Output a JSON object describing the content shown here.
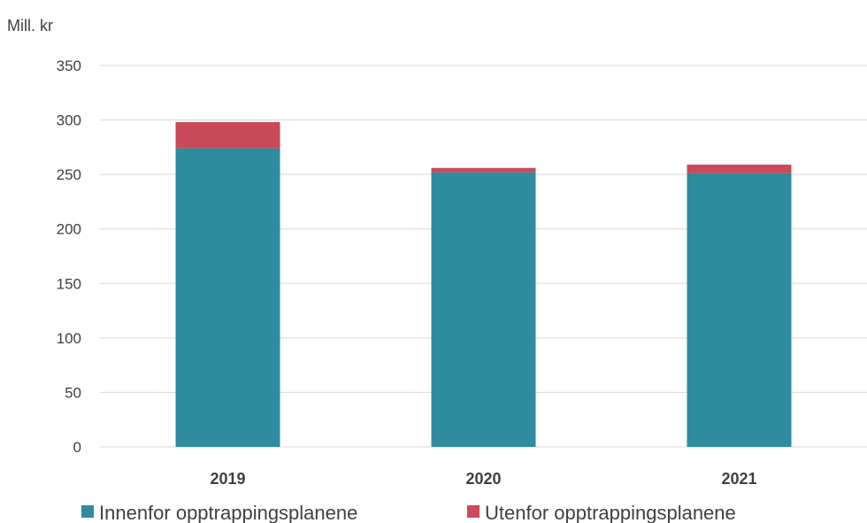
{
  "chart_data": {
    "type": "bar",
    "stacked": true,
    "unit_label": "Mill. kr",
    "categories": [
      "2019",
      "2020",
      "2021"
    ],
    "series": [
      {
        "name": "Innenfor opptrappingsplanene",
        "color": "#2E8C9E",
        "values": [
          274,
          252,
          251
        ]
      },
      {
        "name": "Utenfor opptrappingsplanene",
        "color": "#C94A5A",
        "values": [
          24,
          4,
          8
        ]
      }
    ],
    "ylim": [
      0,
      350
    ],
    "yticks": [
      "0",
      "50",
      "100",
      "150",
      "200",
      "250",
      "300",
      "350"
    ],
    "grid": true,
    "legend_position": "bottom"
  }
}
